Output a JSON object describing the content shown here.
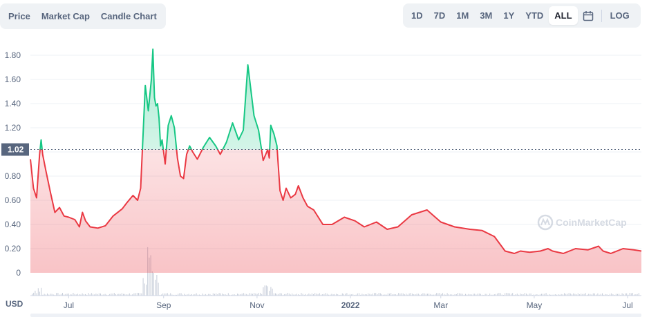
{
  "tabs_left": [
    "Price",
    "Market Cap",
    "Candle Chart"
  ],
  "tabs_right": [
    "1D",
    "7D",
    "1M",
    "3M",
    "1Y",
    "YTD",
    "ALL"
  ],
  "active_range": "ALL",
  "log_label": "LOG",
  "currency_label": "USD",
  "watermark": "CoinMarketCap",
  "icons": {
    "calendar": "calendar-icon",
    "watermark_logo": "coinmarketcap-logo-icon"
  },
  "colors": {
    "up": "#16c784",
    "down": "#ea3943",
    "grid": "#eef0f4",
    "reference_badge": "#58667e"
  },
  "chart_data": {
    "type": "area",
    "x_unit": "date",
    "x_ticks": [
      "Jul",
      "Sep",
      "Nov",
      "2022",
      "Mar",
      "May",
      "Jul"
    ],
    "x_tick_dates": [
      "2021-07-01",
      "2021-09-01",
      "2021-11-01",
      "2022-01-01",
      "2022-03-01",
      "2022-05-01",
      "2022-07-01"
    ],
    "y_ticks": [
      "0",
      "0.20",
      "0.40",
      "0.60",
      "0.80",
      "1.00",
      "1.20",
      "1.40",
      "1.60",
      "1.80"
    ],
    "y_tick_values": [
      0,
      0.2,
      0.4,
      0.6,
      0.8,
      1.0,
      1.2,
      1.4,
      1.6,
      1.8
    ],
    "ylim": [
      0,
      1.9
    ],
    "reference_value": 1.02,
    "reference_label": "1.02",
    "grid": true,
    "series": [
      {
        "x": [
          "2021-06-06",
          "2021-06-08",
          "2021-06-10",
          "2021-06-12",
          "2021-06-13",
          "2021-06-14",
          "2021-06-16",
          "2021-06-19",
          "2021-06-22",
          "2021-06-25",
          "2021-06-28",
          "2021-07-01",
          "2021-07-05",
          "2021-07-08",
          "2021-07-10",
          "2021-07-12",
          "2021-07-15",
          "2021-07-20",
          "2021-07-25",
          "2021-07-30",
          "2021-08-05",
          "2021-08-08",
          "2021-08-12",
          "2021-08-15",
          "2021-08-17",
          "2021-08-20",
          "2021-08-22",
          "2021-08-24",
          "2021-08-25",
          "2021-08-26",
          "2021-08-27",
          "2021-08-28",
          "2021-08-29",
          "2021-08-30",
          "2021-08-31",
          "2021-09-02",
          "2021-09-04",
          "2021-09-06",
          "2021-09-08",
          "2021-09-10",
          "2021-09-12",
          "2021-09-14",
          "2021-09-16",
          "2021-09-18",
          "2021-09-20",
          "2021-09-23",
          "2021-09-27",
          "2021-10-01",
          "2021-10-05",
          "2021-10-08",
          "2021-10-12",
          "2021-10-16",
          "2021-10-20",
          "2021-10-23",
          "2021-10-26",
          "2021-10-30",
          "2021-11-02",
          "2021-11-05",
          "2021-11-08",
          "2021-11-09",
          "2021-11-10",
          "2021-11-12",
          "2021-11-14",
          "2021-11-16",
          "2021-11-18",
          "2021-11-20",
          "2021-11-23",
          "2021-11-26",
          "2021-11-28",
          "2021-12-01",
          "2021-12-04",
          "2021-12-08",
          "2021-12-14",
          "2021-12-20",
          "2021-12-28",
          "2022-01-04",
          "2022-01-10",
          "2022-01-18",
          "2022-01-25",
          "2022-02-01",
          "2022-02-10",
          "2022-02-20",
          "2022-03-01",
          "2022-03-10",
          "2022-03-20",
          "2022-03-28",
          "2022-04-05",
          "2022-04-12",
          "2022-04-18",
          "2022-04-22",
          "2022-04-28",
          "2022-05-05",
          "2022-05-10",
          "2022-05-13",
          "2022-05-20",
          "2022-05-28",
          "2022-06-05",
          "2022-06-12",
          "2022-06-15",
          "2022-06-20",
          "2022-06-28",
          "2022-07-05",
          "2022-07-10"
        ],
        "values": [
          0.94,
          0.7,
          0.62,
          0.98,
          1.1,
          0.98,
          0.85,
          0.67,
          0.5,
          0.54,
          0.47,
          0.46,
          0.44,
          0.38,
          0.5,
          0.43,
          0.38,
          0.37,
          0.39,
          0.47,
          0.53,
          0.58,
          0.64,
          0.6,
          0.7,
          1.55,
          1.34,
          1.6,
          1.85,
          1.45,
          1.38,
          1.4,
          1.28,
          1.05,
          1.1,
          0.9,
          1.22,
          1.3,
          1.2,
          0.95,
          0.8,
          0.78,
          0.98,
          1.05,
          1.0,
          0.94,
          1.04,
          1.12,
          1.05,
          0.98,
          1.08,
          1.24,
          1.1,
          1.18,
          1.72,
          1.3,
          1.18,
          0.93,
          1.02,
          0.95,
          1.22,
          1.15,
          1.05,
          0.68,
          0.6,
          0.7,
          0.62,
          0.65,
          0.72,
          0.62,
          0.55,
          0.52,
          0.4,
          0.4,
          0.46,
          0.43,
          0.38,
          0.42,
          0.36,
          0.38,
          0.48,
          0.52,
          0.42,
          0.38,
          0.36,
          0.35,
          0.3,
          0.18,
          0.16,
          0.18,
          0.17,
          0.18,
          0.2,
          0.18,
          0.16,
          0.2,
          0.19,
          0.22,
          0.18,
          0.16,
          0.2,
          0.19,
          0.18
        ]
      }
    ]
  }
}
